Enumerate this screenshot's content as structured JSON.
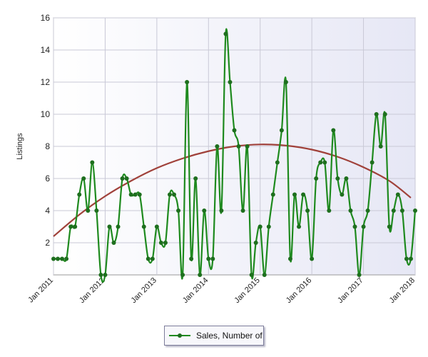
{
  "chart_data": {
    "type": "line",
    "ylabel": "Listings",
    "xlabel": "",
    "ylim": [
      0,
      16
    ],
    "yticks": [
      2,
      4,
      6,
      8,
      10,
      12,
      14,
      16
    ],
    "xlim": [
      "2011-01",
      "2018-01"
    ],
    "xtick_labels": [
      "Jan 2011",
      "Jan 2012",
      "Jan 2013",
      "Jan 2014",
      "Jan 2015",
      "Jan 2016",
      "Jan 2017",
      "Jan 2018"
    ],
    "grid": true,
    "legend_position": "bottom-center",
    "series": [
      {
        "name": "Sales, Number of",
        "color": "#1e8a1e",
        "marker_color": "#1e6f1e",
        "x": [
          "2011-01",
          "2011-02",
          "2011-03",
          "2011-04",
          "2011-05",
          "2011-06",
          "2011-07",
          "2011-08",
          "2011-09",
          "2011-10",
          "2011-11",
          "2011-12",
          "2012-01",
          "2012-02",
          "2012-03",
          "2012-04",
          "2012-05",
          "2012-06",
          "2012-07",
          "2012-08",
          "2012-09",
          "2012-10",
          "2012-11",
          "2012-12",
          "2013-01",
          "2013-02",
          "2013-03",
          "2013-04",
          "2013-05",
          "2013-06",
          "2013-07",
          "2013-08",
          "2013-09",
          "2013-10",
          "2013-11",
          "2013-12",
          "2014-01",
          "2014-02",
          "2014-03",
          "2014-04",
          "2014-05",
          "2014-06",
          "2014-07",
          "2014-08",
          "2014-09",
          "2014-10",
          "2014-11",
          "2014-12",
          "2015-01",
          "2015-02",
          "2015-03",
          "2015-04",
          "2015-05",
          "2015-06",
          "2015-07",
          "2015-08",
          "2015-09",
          "2015-10",
          "2015-11",
          "2015-12",
          "2016-01",
          "2016-02",
          "2016-03",
          "2016-04",
          "2016-05",
          "2016-06",
          "2016-07",
          "2016-08",
          "2016-09",
          "2016-10",
          "2016-11",
          "2016-12",
          "2017-01",
          "2017-02",
          "2017-03",
          "2017-04",
          "2017-05",
          "2017-06",
          "2017-07",
          "2017-08",
          "2017-09",
          "2017-10",
          "2017-11",
          "2017-12",
          "2018-01"
        ],
        "values": [
          1,
          1,
          1,
          1,
          3,
          3,
          5,
          6,
          4,
          7,
          4,
          0,
          0,
          3,
          2,
          3,
          6,
          6,
          5,
          5,
          5,
          3,
          1,
          1,
          3,
          2,
          2,
          5,
          5,
          4,
          0,
          12,
          1,
          6,
          0,
          4,
          1,
          1,
          8,
          4,
          15,
          12,
          9,
          8,
          4,
          8,
          0,
          2,
          3,
          0,
          3,
          5,
          7,
          9,
          12,
          1,
          5,
          3,
          5,
          4,
          1,
          6,
          7,
          7,
          4,
          9,
          6,
          5,
          6,
          4,
          3,
          0,
          3,
          4,
          7,
          10,
          8,
          10,
          3,
          4,
          5,
          4,
          1,
          1,
          4
        ]
      },
      {
        "name": "",
        "type": "trendline",
        "color": "#a0413a",
        "x": [
          "2011-01",
          "2011-07",
          "2012-01",
          "2012-07",
          "2013-01",
          "2013-07",
          "2014-01",
          "2014-07",
          "2015-01",
          "2015-07",
          "2016-01",
          "2016-07",
          "2017-01",
          "2017-07",
          "2017-12"
        ],
        "values": [
          2.4,
          3.75,
          4.9,
          5.85,
          6.65,
          7.25,
          7.7,
          8.0,
          8.12,
          8.05,
          7.8,
          7.35,
          6.7,
          5.85,
          4.8
        ]
      }
    ]
  },
  "legend": {
    "label": "Sales, Number of"
  }
}
